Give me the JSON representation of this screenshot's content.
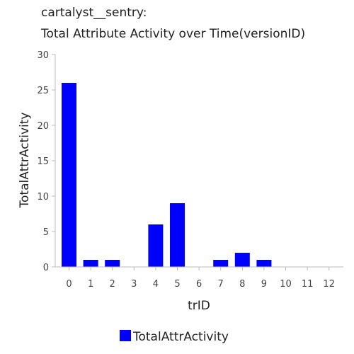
{
  "title_line1": "cartalyst__sentry:",
  "title_line2": "Total Attribute Activity over Time(versionID)",
  "chart_data": {
    "type": "bar",
    "title": "cartalyst__sentry: Total Attribute Activity over Time(versionID)",
    "xlabel": "trID",
    "ylabel": "TotalAttrActivity",
    "categories": [
      "0",
      "1",
      "2",
      "3",
      "4",
      "5",
      "6",
      "7",
      "8",
      "9",
      "10",
      "11",
      "12"
    ],
    "ylim": [
      0,
      30
    ],
    "yticks": [
      "0",
      "5",
      "10",
      "15",
      "20",
      "25",
      "30"
    ],
    "series": [
      {
        "name": "TotalAttrActivity",
        "color": "#0000ff",
        "values": [
          26,
          1,
          1,
          0,
          6,
          9,
          0,
          1,
          2,
          1,
          0,
          0,
          0
        ]
      }
    ],
    "grid": false,
    "legend": "bottom"
  },
  "colors": {
    "bar": "#0000ff",
    "axis": "#bbbbbb"
  }
}
